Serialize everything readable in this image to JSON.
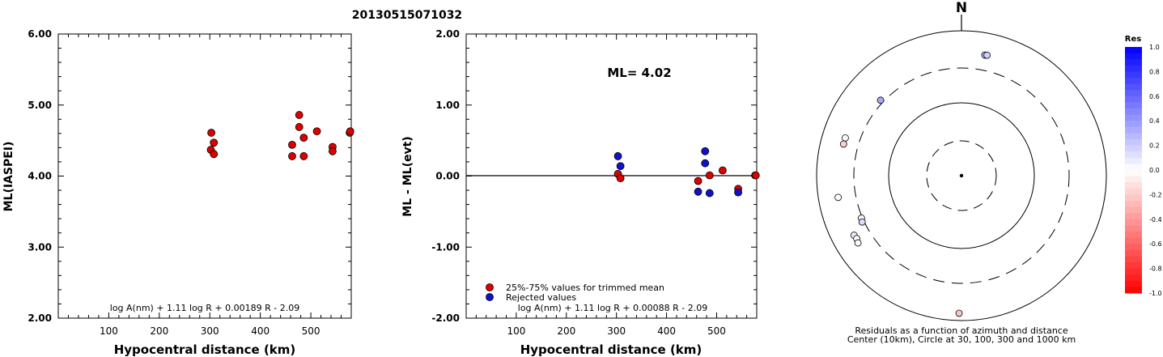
{
  "title": "20130515071032",
  "chart_data": [
    {
      "type": "scatter",
      "xlabel": "Hypocentral distance (km)",
      "ylabel": "ML(IASPEI)",
      "xlim": [
        0,
        580
      ],
      "ylim": [
        2.0,
        6.0
      ],
      "xticks": [
        "100",
        "200",
        "300",
        "400",
        "500"
      ],
      "yticks": [
        "2.00",
        "3.00",
        "4.00",
        "5.00",
        "6.00"
      ],
      "formula": "log A(nm) + 1.11 log R + 0.00189 R - 2.09",
      "series": [
        {
          "color": "#dd0000",
          "points": [
            [
              303,
              4.61
            ],
            [
              302,
              4.37
            ],
            [
              308,
              4.47
            ],
            [
              308,
              4.31
            ],
            [
              463,
              4.44
            ],
            [
              463,
              4.28
            ],
            [
              477,
              4.86
            ],
            [
              477,
              4.69
            ],
            [
              486,
              4.54
            ],
            [
              486,
              4.28
            ],
            [
              512,
              4.63
            ],
            [
              543,
              4.41
            ],
            [
              543,
              4.35
            ],
            [
              577,
              4.61
            ],
            [
              578,
              4.63
            ]
          ]
        }
      ]
    },
    {
      "type": "scatter",
      "xlabel": "Hypocentral distance (km)",
      "ylabel": "ML - ML(evt)",
      "xlim": [
        0,
        580
      ],
      "ylim": [
        -2.0,
        2.0
      ],
      "xticks": [
        "100",
        "200",
        "300",
        "400",
        "500"
      ],
      "yticks": [
        "-2.00",
        "-1.00",
        "0.00",
        "1.00",
        "2.00"
      ],
      "annotation": "ML= 4.02",
      "formula": "log A(nm) + 1.11 log R + 0.00088 R - 2.09",
      "series": [
        {
          "name": "25%-75% values for trimmed mean",
          "color": "#dd0000",
          "points": [
            [
              303,
              0.03
            ],
            [
              308,
              -0.03
            ],
            [
              463,
              -0.07
            ],
            [
              486,
              0.01
            ],
            [
              512,
              0.08
            ],
            [
              543,
              -0.18
            ],
            [
              577,
              0.01
            ],
            [
              578,
              0.01
            ]
          ]
        },
        {
          "name": "Rejected values",
          "color": "#1111cc",
          "points": [
            [
              303,
              0.28
            ],
            [
              308,
              0.14
            ],
            [
              463,
              -0.22
            ],
            [
              477,
              0.35
            ],
            [
              477,
              0.18
            ],
            [
              486,
              -0.24
            ],
            [
              543,
              -0.23
            ]
          ]
        }
      ]
    },
    {
      "type": "polar-scatter",
      "north_label": "N",
      "caption_line1": "Residuals as a function of azimuth and distance",
      "caption_line2": "Center (10km), Circle at 30, 100, 300 and 1000 km",
      "rings_km": [
        30,
        100,
        300,
        1000
      ],
      "points": [
        {
          "azimuth_deg": 11,
          "distance_km": 490,
          "residual": 0.28
        },
        {
          "azimuth_deg": 12,
          "distance_km": 495,
          "residual": 0.18
        },
        {
          "azimuth_deg": 313,
          "distance_km": 330,
          "residual": 0.35
        },
        {
          "azimuth_deg": 288,
          "distance_km": 480,
          "residual": -0.03
        },
        {
          "azimuth_deg": 285,
          "distance_km": 478,
          "residual": -0.18
        },
        {
          "azimuth_deg": 260,
          "distance_km": 530,
          "residual": 0.01
        },
        {
          "azimuth_deg": 247,
          "distance_km": 310,
          "residual": 0.03
        },
        {
          "azimuth_deg": 245,
          "distance_km": 320,
          "residual": 0.14
        },
        {
          "azimuth_deg": 241,
          "distance_km": 490,
          "residual": 0.08
        },
        {
          "azimuth_deg": 239,
          "distance_km": 480,
          "residual": 0.01
        },
        {
          "azimuth_deg": 237,
          "distance_km": 500,
          "residual": 0.01
        },
        {
          "azimuth_deg": 181,
          "distance_km": 790,
          "residual": -0.23
        }
      ],
      "colorbar": {
        "title": "Res",
        "ticks": [
          "1.0",
          "0.8",
          "0.6",
          "0.4",
          "0.2",
          "0.0",
          "-0.2",
          "-0.4",
          "-0.6",
          "-0.8",
          "-1.0"
        ]
      }
    }
  ]
}
